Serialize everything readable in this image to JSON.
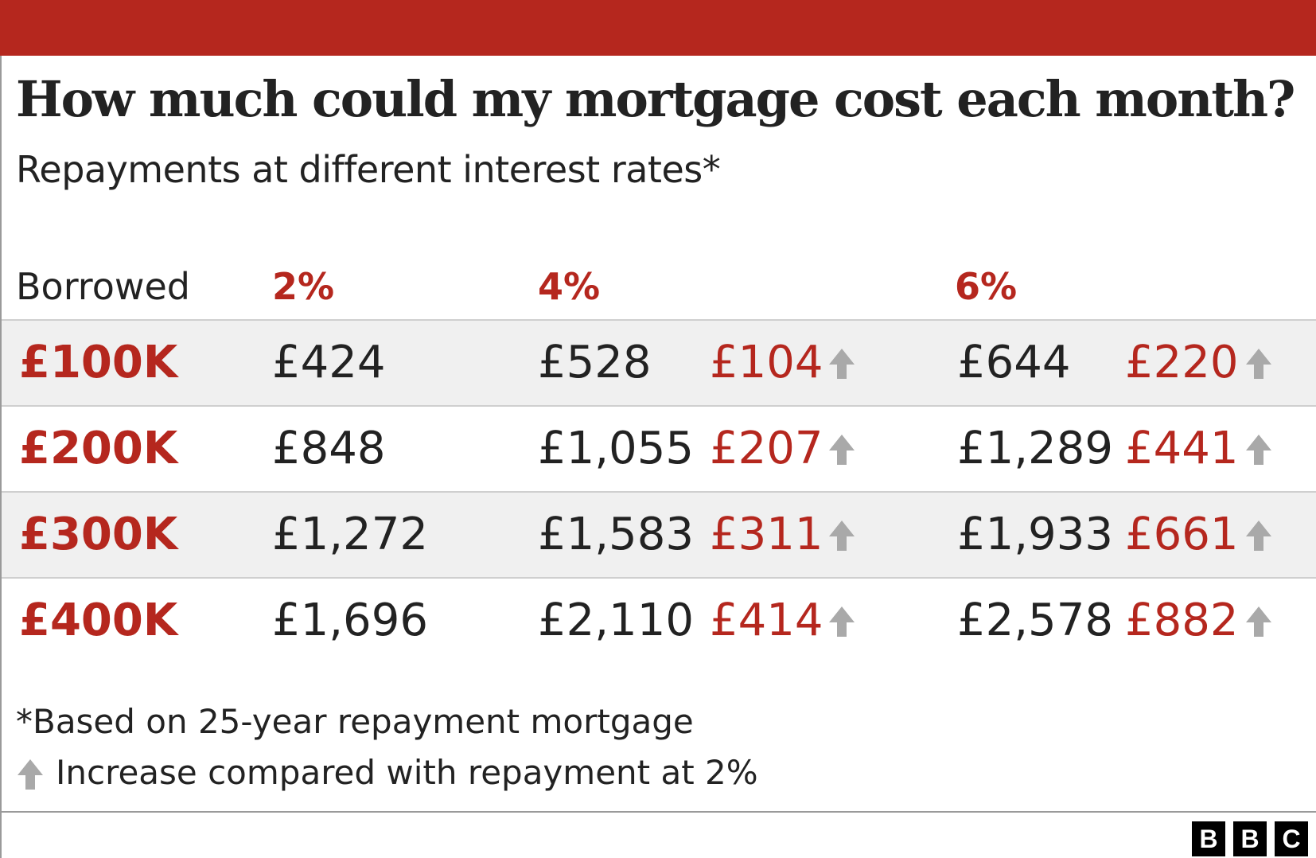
{
  "title": "How much could my mortgage cost each month?",
  "subtitle": "Repayments at different interest rates*",
  "headers": {
    "borrowed": "Borrowed",
    "rate_2": "2%",
    "rate_4": "4%",
    "rate_6": "6%"
  },
  "rows": [
    {
      "borrowed": "£100K",
      "r2": "£424",
      "r4": "£528",
      "inc4": "£104",
      "r6": "£644",
      "inc6": "£220"
    },
    {
      "borrowed": "£200K",
      "r2": "£848",
      "r4": "£1,055",
      "inc4": "£207",
      "r6": "£1,289",
      "inc6": "£441"
    },
    {
      "borrowed": "£300K",
      "r2": "£1,272",
      "r4": "£1,583",
      "inc4": "£311",
      "r6": "£1,933",
      "inc6": "£661"
    },
    {
      "borrowed": "£400K",
      "r2": "£1,696",
      "r4": "£2,110",
      "inc4": "£414",
      "r6": "£2,578",
      "inc6": "£882"
    }
  ],
  "footnote": "*Based on 25-year repayment mortgage",
  "legend": {
    "text": "Increase compared with repayment at 2%",
    "icon": "up-arrow-icon"
  },
  "logo": {
    "letters": [
      "B",
      "B",
      "C"
    ]
  },
  "colors": {
    "accent_red": "#b5271e",
    "text": "#222222",
    "arrow_grey": "#a9a9a9",
    "row_shade": "#f0f0f0"
  },
  "chart_data": {
    "type": "table",
    "title": "How much could my mortgage cost each month?",
    "subtitle": "Repayments at different interest rates*",
    "columns": [
      "Borrowed",
      "2%",
      "4%",
      "6%"
    ],
    "rows": [
      {
        "borrowed": "£100K",
        "2%": 424,
        "4%": 528,
        "4%_increase": 104,
        "6%": 644,
        "6%_increase": 220
      },
      {
        "borrowed": "£200K",
        "2%": 848,
        "4%": 1055,
        "4%_increase": 207,
        "6%": 1289,
        "6%_increase": 441
      },
      {
        "borrowed": "£300K",
        "2%": 1272,
        "4%": 1583,
        "4%_increase": 311,
        "6%": 1933,
        "6%_increase": 661
      },
      {
        "borrowed": "£400K",
        "2%": 1696,
        "4%": 2110,
        "4%_increase": 414,
        "6%": 2578,
        "6%_increase": 882
      }
    ],
    "notes": [
      "*Based on 25-year repayment mortgage",
      "Increase compared with repayment at 2%"
    ]
  }
}
